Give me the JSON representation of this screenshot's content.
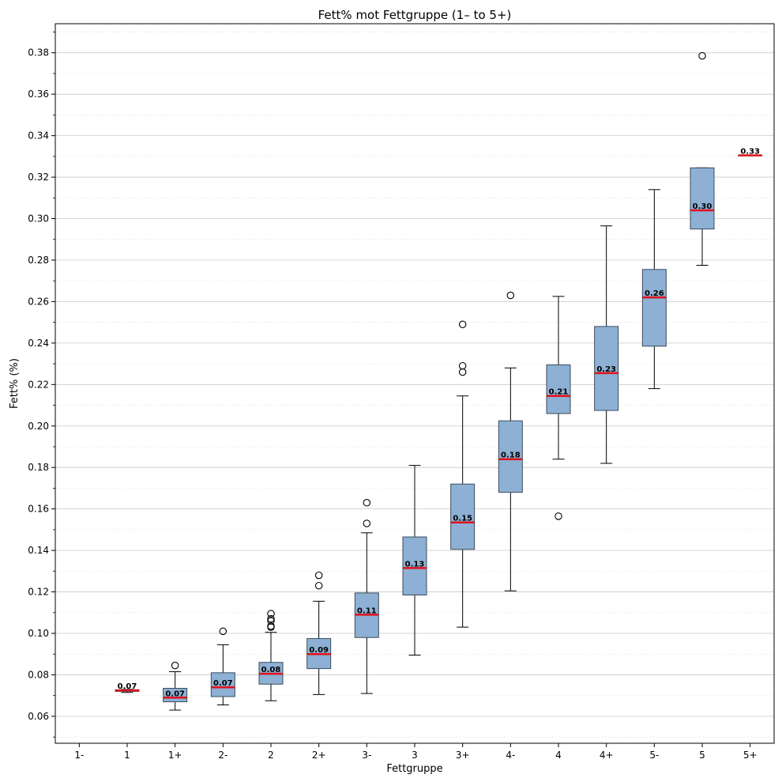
{
  "chart_data": {
    "type": "box",
    "title": "Fett% mot Fettgruppe (1– to 5+)",
    "xlabel": "Fettgruppe",
    "ylabel": "Fett% (%)",
    "ylim": [
      0.047,
      0.394
    ],
    "yticks": [
      "0.06",
      "0.08",
      "0.10",
      "0.12",
      "0.14",
      "0.16",
      "0.18",
      "0.20",
      "0.22",
      "0.24",
      "0.26",
      "0.28",
      "0.30",
      "0.32",
      "0.34",
      "0.36",
      "0.38"
    ],
    "grid": "horizontal",
    "categories": [
      "1-",
      "1",
      "1+",
      "2-",
      "2",
      "2+",
      "3-",
      "3",
      "3+",
      "4-",
      "4",
      "4+",
      "5-",
      "5",
      "5+"
    ],
    "boxes": [
      null,
      {
        "whisker_low": 0.0715,
        "q1": 0.072,
        "median": 0.0725,
        "q3": 0.0728,
        "whisker_high": 0.073,
        "label": "0.07",
        "outliers": []
      },
      {
        "whisker_low": 0.063,
        "q1": 0.067,
        "median": 0.069,
        "q3": 0.0735,
        "whisker_high": 0.0815,
        "label": "0.07",
        "outliers": [
          0.0845
        ]
      },
      {
        "whisker_low": 0.0655,
        "q1": 0.0695,
        "median": 0.074,
        "q3": 0.081,
        "whisker_high": 0.0945,
        "label": "0.07",
        "outliers": [
          0.101
        ]
      },
      {
        "whisker_low": 0.0675,
        "q1": 0.0755,
        "median": 0.0805,
        "q3": 0.086,
        "whisker_high": 0.1005,
        "label": "0.08",
        "outliers": [
          0.103,
          0.1035,
          0.106,
          0.107,
          0.1095
        ]
      },
      {
        "whisker_low": 0.0705,
        "q1": 0.083,
        "median": 0.09,
        "q3": 0.0975,
        "whisker_high": 0.1155,
        "label": "0.09",
        "outliers": [
          0.123,
          0.128
        ]
      },
      {
        "whisker_low": 0.071,
        "q1": 0.098,
        "median": 0.109,
        "q3": 0.1195,
        "whisker_high": 0.1485,
        "label": "0.11",
        "outliers": [
          0.153,
          0.163
        ]
      },
      {
        "whisker_low": 0.0895,
        "q1": 0.1185,
        "median": 0.1315,
        "q3": 0.1465,
        "whisker_high": 0.181,
        "label": "0.13",
        "outliers": []
      },
      {
        "whisker_low": 0.103,
        "q1": 0.1405,
        "median": 0.1535,
        "q3": 0.172,
        "whisker_high": 0.2145,
        "label": "0.15",
        "outliers": [
          0.226,
          0.229,
          0.249
        ]
      },
      {
        "whisker_low": 0.1205,
        "q1": 0.168,
        "median": 0.184,
        "q3": 0.2025,
        "whisker_high": 0.228,
        "label": "0.18",
        "outliers": [
          0.263
        ]
      },
      {
        "whisker_low": 0.184,
        "q1": 0.206,
        "median": 0.2145,
        "q3": 0.2295,
        "whisker_high": 0.2625,
        "label": "0.21",
        "outliers": [
          0.1565
        ]
      },
      {
        "whisker_low": 0.182,
        "q1": 0.2075,
        "median": 0.2255,
        "q3": 0.248,
        "whisker_high": 0.2965,
        "label": "0.23",
        "outliers": []
      },
      {
        "whisker_low": 0.218,
        "q1": 0.2385,
        "median": 0.262,
        "q3": 0.2755,
        "whisker_high": 0.314,
        "label": "0.26",
        "outliers": []
      },
      {
        "whisker_low": 0.2775,
        "q1": 0.295,
        "median": 0.304,
        "q3": 0.3245,
        "whisker_high": 0.3245,
        "label": "0.30",
        "outliers": [
          0.3785
        ]
      },
      {
        "whisker_low": 0.3305,
        "q1": 0.3305,
        "median": 0.3305,
        "q3": 0.3305,
        "whisker_high": 0.3305,
        "label": "0.33",
        "outliers": []
      }
    ],
    "colors": {
      "box_fill": "#8db0d4",
      "box_edge": "#3c4d5e",
      "median": "#e0111b",
      "whisker": "#000000",
      "grid_major": "#c8c8c8",
      "grid_minor": "#e8e8e8"
    }
  }
}
